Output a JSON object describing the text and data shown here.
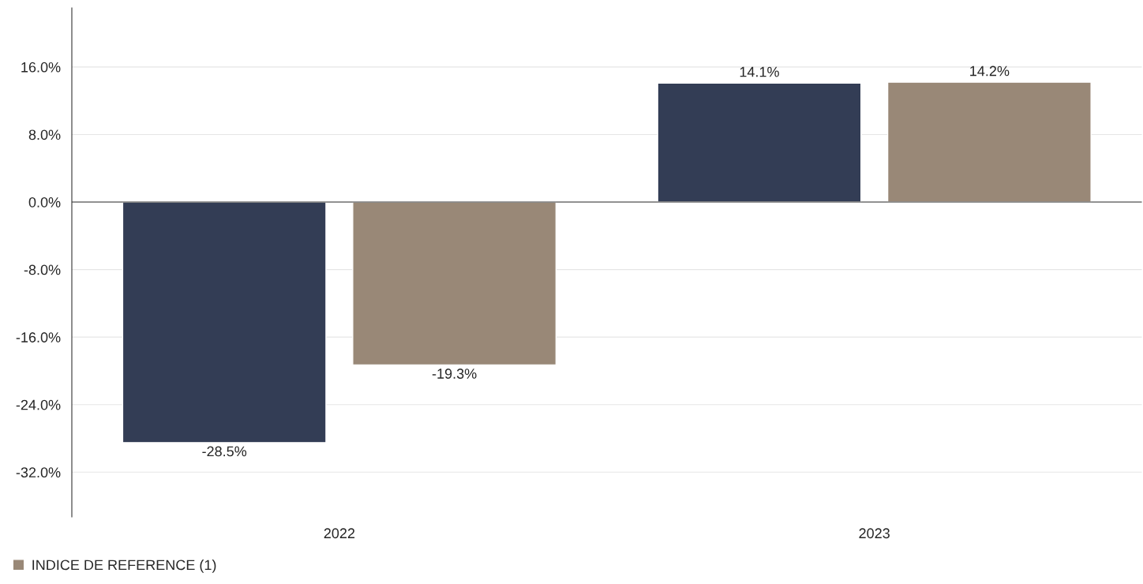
{
  "chart_data": {
    "type": "bar",
    "categories": [
      "2022",
      "2023"
    ],
    "series": [
      {
        "color": "#333d55",
        "values": [
          -28.5,
          14.1
        ],
        "value_labels": [
          "-28.5%",
          "14.1%"
        ]
      },
      {
        "name": "INDICE DE REFERENCE (1)",
        "color": "#998877",
        "values": [
          -19.3,
          14.2
        ],
        "value_labels": [
          "-19.3%",
          "14.2%"
        ]
      }
    ],
    "ylim": [
      -37.3,
      23.0
    ],
    "yticks": [
      {
        "value": -32,
        "label": "-32.0%"
      },
      {
        "value": -24,
        "label": "-24.0%"
      },
      {
        "value": -16,
        "label": "-16.0%"
      },
      {
        "value": -8,
        "label": "-8.0%"
      },
      {
        "value": 0,
        "label": "0.0%"
      },
      {
        "value": 8,
        "label": "8.0%"
      },
      {
        "value": 16,
        "label": "16.0%"
      }
    ],
    "grid": "y",
    "legend": "bottom left"
  }
}
